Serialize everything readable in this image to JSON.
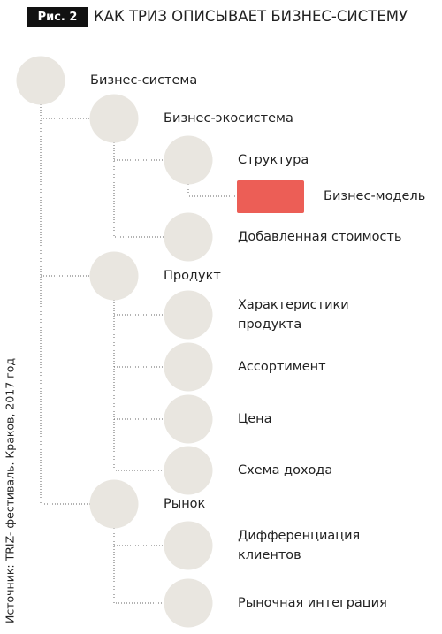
{
  "header": {
    "figure": "Рис. 2",
    "title": "КАК ТРИЗ ОПИСЫВАЕТ БИЗНЕС-СИСТЕМУ"
  },
  "nodes": [
    {
      "lines": [
        "Бизнес-система"
      ]
    },
    {
      "lines": [
        "Бизнес-экосистема"
      ]
    },
    {
      "lines": [
        "Структура"
      ]
    },
    {
      "lines": [
        "Бизнес-модель"
      ]
    },
    {
      "lines": [
        "Добавленная стоимость"
      ]
    },
    {
      "lines": [
        "Продукт"
      ]
    },
    {
      "lines": [
        "Характеристики",
        "продукта"
      ]
    },
    {
      "lines": [
        "Ассортимент"
      ]
    },
    {
      "lines": [
        "Цена"
      ]
    },
    {
      "lines": [
        "Схема дохода"
      ]
    },
    {
      "lines": [
        "Рынок"
      ]
    },
    {
      "lines": [
        "Дифференциация",
        "клиентов"
      ]
    },
    {
      "lines": [
        "Рыночная интеграция"
      ]
    }
  ],
  "source": "Источник:  TRIZ- фестиваль. Краков, 2017 год"
}
